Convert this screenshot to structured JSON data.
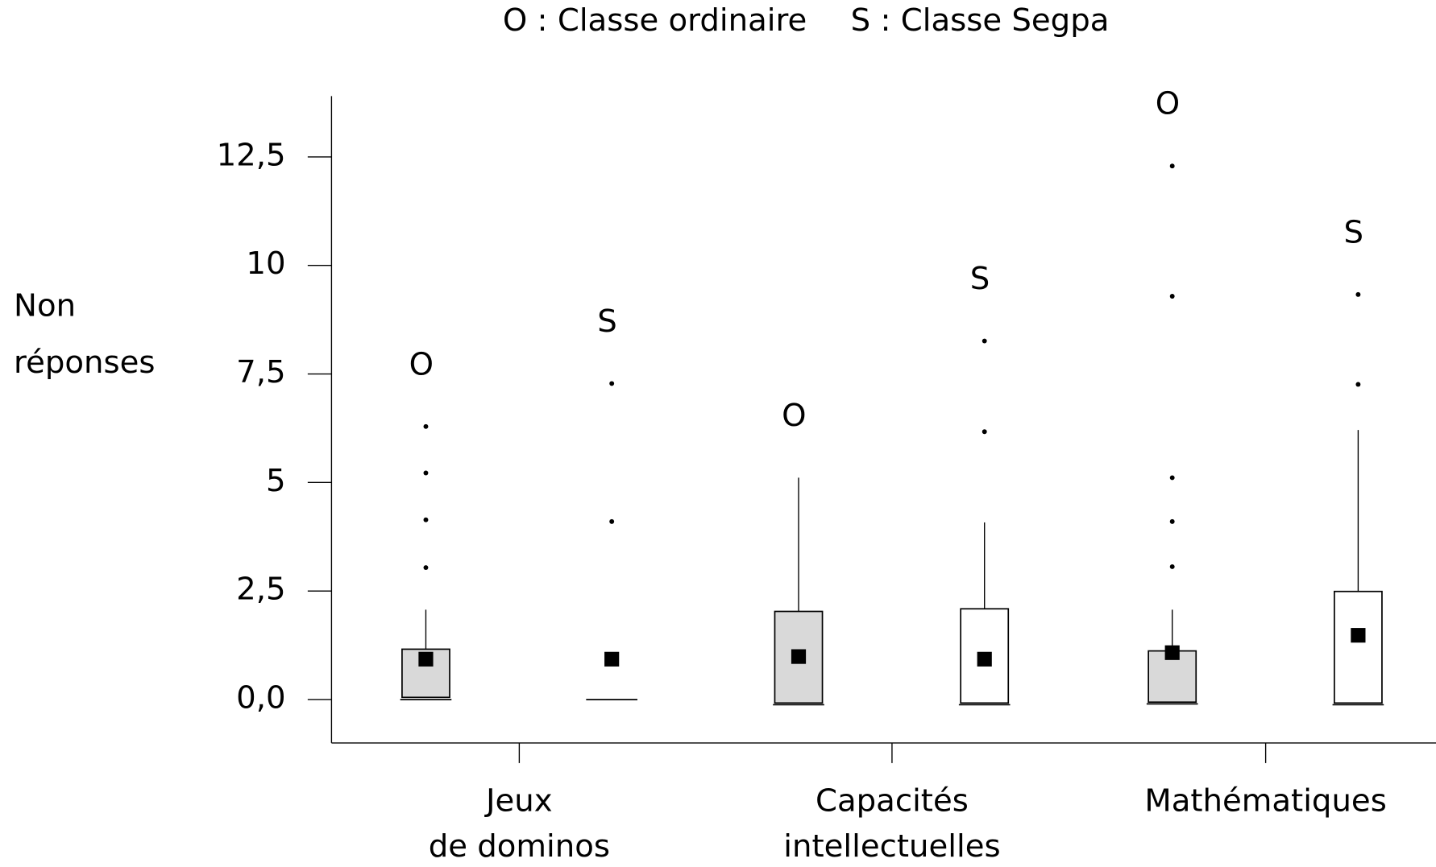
{
  "chart_data": {
    "type": "box",
    "legend": [
      "O : Classe ordinaire",
      "S : Classe Segpa"
    ],
    "y_label": [
      "Non",
      "réponses"
    ],
    "categories": [
      [
        "Jeux",
        "de dominos"
      ],
      [
        "Capacités",
        "intellectuelles"
      ],
      [
        "Mathématiques"
      ]
    ],
    "ylim": [
      -1,
      13.9
    ],
    "yticks": [
      {
        "value": 0,
        "label": "0,0"
      },
      {
        "value": 2.5,
        "label": "2,5"
      },
      5,
      {
        "value": 7.5,
        "label": "7,5"
      },
      10,
      {
        "value": 12.5,
        "label": "12,5"
      }
    ],
    "boxes": [
      {
        "category": 0,
        "label": "O",
        "fill": "#d9d9d9",
        "min": 0,
        "q1": 0.05,
        "q3": 1.16,
        "whisker_high": 2.07,
        "mean": 0.93,
        "outliers": [
          3.04,
          4.14,
          5.22,
          6.29
        ]
      },
      {
        "category": 0,
        "label": "S",
        "fill": "#ffffff",
        "min": 0,
        "q1": 0,
        "q3": 0,
        "whisker_high": 0,
        "mean": 0.93,
        "outliers": [
          4.1,
          7.28
        ]
      },
      {
        "category": 1,
        "label": "O",
        "fill": "#d9d9d9",
        "min": -0.12,
        "q1": -0.08,
        "q3": 2.03,
        "whisker_high": 5.11,
        "mean": 0.99,
        "outliers": []
      },
      {
        "category": 1,
        "label": "S",
        "fill": "#ffffff",
        "min": -0.12,
        "q1": -0.08,
        "q3": 2.09,
        "whisker_high": 4.08,
        "mean": 0.93,
        "outliers": [
          6.17,
          8.26
        ]
      },
      {
        "category": 2,
        "label": "O",
        "fill": "#d9d9d9",
        "min": -0.1,
        "q1": -0.06,
        "q3": 1.12,
        "whisker_high": 2.07,
        "mean": 1.08,
        "outliers": [
          3.06,
          4.1,
          5.11,
          9.29,
          12.29
        ]
      },
      {
        "category": 2,
        "label": "S",
        "fill": "#ffffff",
        "min": -0.12,
        "q1": -0.08,
        "q3": 2.49,
        "whisker_high": 6.21,
        "mean": 1.48,
        "outliers": [
          7.26,
          9.33
        ]
      }
    ]
  }
}
